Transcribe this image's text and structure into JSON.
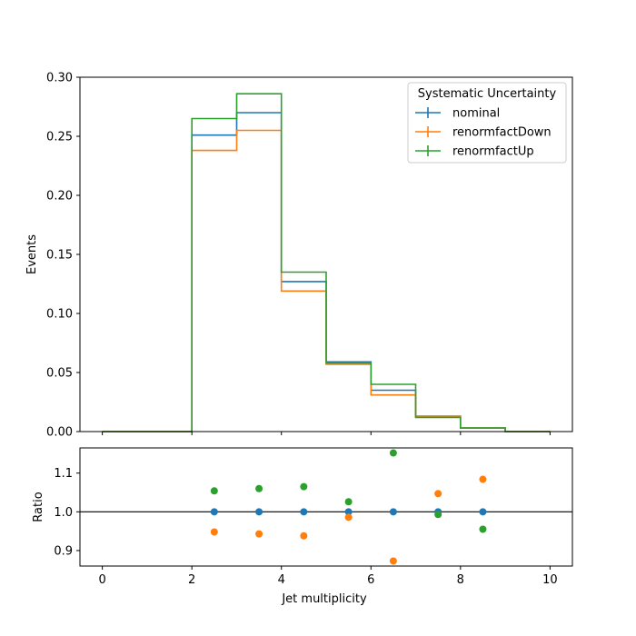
{
  "chart_data": [
    {
      "type": "line",
      "xlabel": "",
      "ylabel": "Events",
      "xlim": [
        -0.5,
        10.5
      ],
      "ylim": [
        0.0,
        0.3
      ],
      "x_ticks": [
        0,
        2,
        4,
        6,
        8,
        10
      ],
      "y_ticks": [
        "0.00",
        "0.05",
        "0.10",
        "0.15",
        "0.20",
        "0.25",
        "0.30"
      ],
      "bin_edges": [
        0,
        1,
        2,
        3,
        4,
        5,
        6,
        7,
        8,
        9,
        10
      ],
      "legend": {
        "title": "Systematic Uncertainty",
        "placement": "top-right"
      },
      "series": [
        {
          "name": "nominal",
          "color": "#1f77b4",
          "values": [
            0.0,
            0.0,
            0.251,
            0.27,
            0.127,
            0.059,
            0.035,
            0.013,
            0.003,
            0.0
          ]
        },
        {
          "name": "renormfactDown",
          "color": "#ff7f0e",
          "values": [
            0.0,
            0.0,
            0.238,
            0.255,
            0.119,
            0.057,
            0.031,
            0.013,
            0.003,
            0.0
          ]
        },
        {
          "name": "renormfactUp",
          "color": "#2ca02c",
          "values": [
            0.0,
            0.0,
            0.265,
            0.286,
            0.135,
            0.058,
            0.04,
            0.012,
            0.003,
            0.0
          ]
        }
      ]
    },
    {
      "type": "scatter",
      "xlabel": "Jet multiplicity",
      "ylabel": "Ratio",
      "xlim": [
        -0.5,
        10.5
      ],
      "ylim": [
        0.86,
        1.165
      ],
      "x_ticks": [
        0,
        2,
        4,
        6,
        8,
        10
      ],
      "y_ticks": [
        "0.9",
        "1.0",
        "1.1"
      ],
      "reference_line": 1.0,
      "x": [
        2.5,
        3.5,
        4.5,
        5.5,
        6.5,
        7.5,
        8.5
      ],
      "series": [
        {
          "name": "nominal",
          "color": "#1f77b4",
          "values": [
            1.0,
            1.0,
            1.0,
            1.0,
            1.0,
            1.0,
            1.0
          ]
        },
        {
          "name": "renormfactDown",
          "color": "#ff7f0e",
          "values": [
            0.948,
            0.943,
            0.938,
            0.986,
            0.873,
            1.047,
            1.084
          ]
        },
        {
          "name": "renormfactUp",
          "color": "#2ca02c",
          "values": [
            1.054,
            1.06,
            1.065,
            1.026,
            1.152,
            0.993,
            0.955
          ]
        }
      ]
    }
  ]
}
